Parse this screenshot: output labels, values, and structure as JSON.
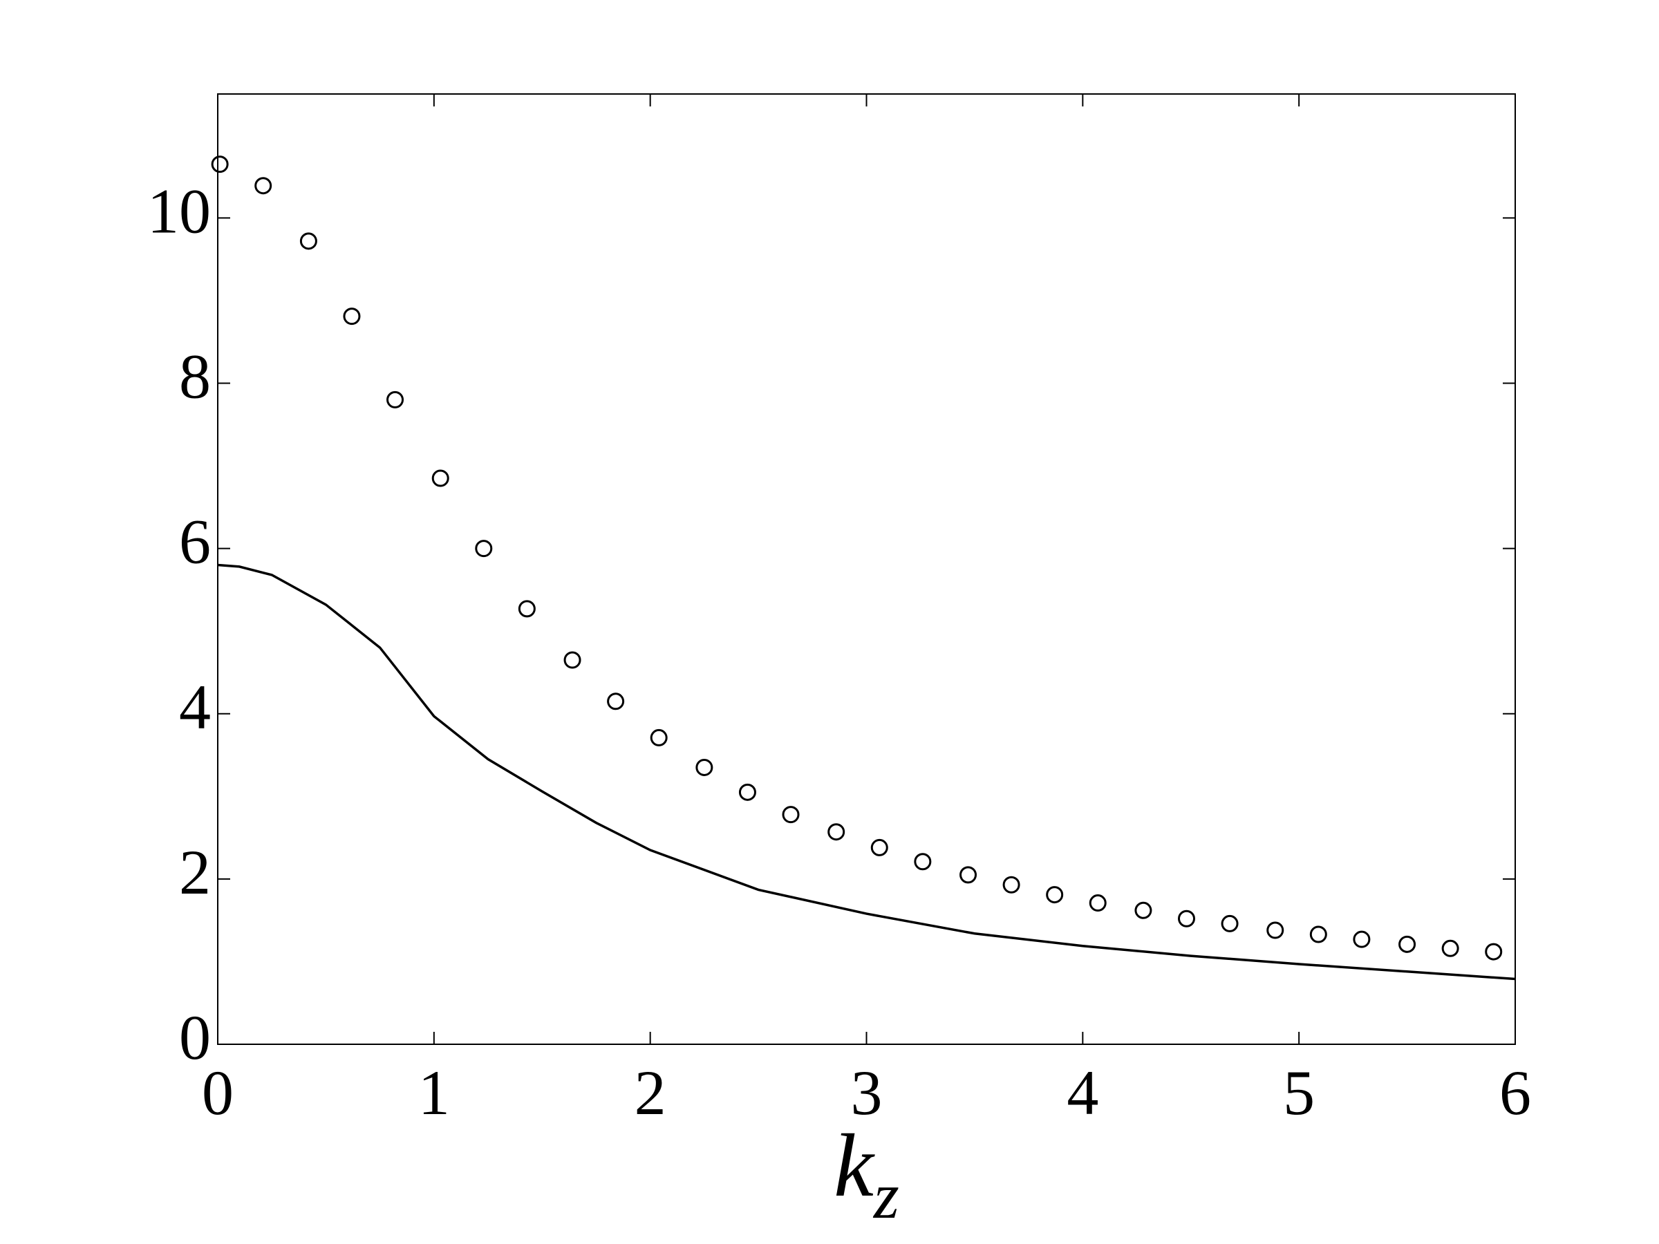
{
  "chart_data": {
    "type": "scatter-line",
    "xlabel": "k_z",
    "xlim": [
      0,
      6
    ],
    "xticks": [
      0,
      1,
      2,
      3,
      4,
      5,
      6
    ],
    "ylim": [
      0,
      11.5
    ],
    "yticks": [
      0,
      2,
      4,
      6,
      8,
      10
    ],
    "series": [
      {
        "kind": "scatter",
        "color": "#000000",
        "x": [
          0.01,
          0.21,
          0.42,
          0.62,
          0.82,
          1.03,
          1.23,
          1.43,
          1.64,
          1.84,
          2.04,
          2.25,
          2.45,
          2.65,
          2.86,
          3.06,
          3.26,
          3.47,
          3.67,
          3.87,
          4.07,
          4.28,
          4.48,
          4.68,
          4.89,
          5.09,
          5.29,
          5.5,
          5.7,
          5.9
        ],
        "values": [
          10.65,
          10.39,
          9.72,
          8.81,
          7.8,
          6.85,
          6.0,
          5.27,
          4.65,
          4.15,
          3.71,
          3.35,
          3.05,
          2.78,
          2.57,
          2.38,
          2.21,
          2.05,
          1.93,
          1.81,
          1.71,
          1.62,
          1.52,
          1.46,
          1.38,
          1.33,
          1.27,
          1.21,
          1.16,
          1.12
        ]
      },
      {
        "kind": "line",
        "color": "#000000",
        "x": [
          0,
          0.1,
          0.25,
          0.5,
          0.75,
          1,
          1.25,
          1.5,
          1.75,
          2,
          2.5,
          3,
          3.5,
          4,
          4.5,
          5,
          5.5,
          6
        ],
        "values": [
          5.8,
          5.78,
          5.68,
          5.32,
          4.8,
          3.97,
          3.45,
          3.06,
          2.68,
          2.35,
          1.87,
          1.58,
          1.34,
          1.19,
          1.07,
          0.97,
          0.88,
          0.79
        ]
      }
    ]
  }
}
